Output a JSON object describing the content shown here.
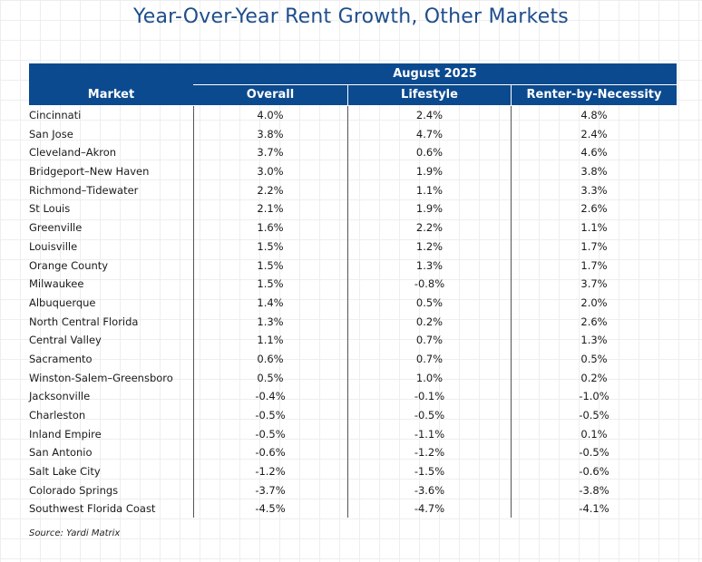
{
  "chart_data": {
    "type": "table",
    "title": "Year-Over-Year Rent Growth, Other Markets",
    "group_header": "August 2025",
    "columns": [
      "Market",
      "Overall",
      "Lifestyle",
      "Renter-by-Necessity"
    ],
    "rows": [
      {
        "market": "Cincinnati",
        "overall": "4.0%",
        "lifestyle": "2.4%",
        "rbn": "4.8%"
      },
      {
        "market": "San Jose",
        "overall": "3.8%",
        "lifestyle": "4.7%",
        "rbn": "2.4%"
      },
      {
        "market": "Cleveland–Akron",
        "overall": "3.7%",
        "lifestyle": "0.6%",
        "rbn": "4.6%"
      },
      {
        "market": "Bridgeport–New Haven",
        "overall": "3.0%",
        "lifestyle": "1.9%",
        "rbn": "3.8%"
      },
      {
        "market": "Richmond–Tidewater",
        "overall": "2.2%",
        "lifestyle": "1.1%",
        "rbn": "3.3%"
      },
      {
        "market": "St Louis",
        "overall": "2.1%",
        "lifestyle": "1.9%",
        "rbn": "2.6%"
      },
      {
        "market": "Greenville",
        "overall": "1.6%",
        "lifestyle": "2.2%",
        "rbn": "1.1%"
      },
      {
        "market": "Louisville",
        "overall": "1.5%",
        "lifestyle": "1.2%",
        "rbn": "1.7%"
      },
      {
        "market": "Orange County",
        "overall": "1.5%",
        "lifestyle": "1.3%",
        "rbn": "1.7%"
      },
      {
        "market": "Milwaukee",
        "overall": "1.5%",
        "lifestyle": "-0.8%",
        "rbn": "3.7%"
      },
      {
        "market": "Albuquerque",
        "overall": "1.4%",
        "lifestyle": "0.5%",
        "rbn": "2.0%"
      },
      {
        "market": "North Central Florida",
        "overall": "1.3%",
        "lifestyle": "0.2%",
        "rbn": "2.6%"
      },
      {
        "market": "Central Valley",
        "overall": "1.1%",
        "lifestyle": "0.7%",
        "rbn": "1.3%"
      },
      {
        "market": "Sacramento",
        "overall": "0.6%",
        "lifestyle": "0.7%",
        "rbn": "0.5%"
      },
      {
        "market": "Winston-Salem–Greensboro",
        "overall": "0.5%",
        "lifestyle": "1.0%",
        "rbn": "0.2%"
      },
      {
        "market": "Jacksonville",
        "overall": "-0.4%",
        "lifestyle": "-0.1%",
        "rbn": "-1.0%"
      },
      {
        "market": "Charleston",
        "overall": "-0.5%",
        "lifestyle": "-0.5%",
        "rbn": "-0.5%"
      },
      {
        "market": "Inland Empire",
        "overall": "-0.5%",
        "lifestyle": "-1.1%",
        "rbn": "0.1%"
      },
      {
        "market": "San Antonio",
        "overall": "-0.6%",
        "lifestyle": "-1.2%",
        "rbn": "-0.5%"
      },
      {
        "market": "Salt Lake City",
        "overall": "-1.2%",
        "lifestyle": "-1.5%",
        "rbn": "-0.6%"
      },
      {
        "market": "Colorado Springs",
        "overall": "-3.7%",
        "lifestyle": "-3.6%",
        "rbn": "-3.8%"
      },
      {
        "market": "Southwest Florida Coast",
        "overall": "-4.5%",
        "lifestyle": "-4.7%",
        "rbn": "-4.1%"
      }
    ],
    "source": "Source: Yardi Matrix",
    "header_color": "#0b4a8f",
    "title_color": "#1f4e8c"
  }
}
